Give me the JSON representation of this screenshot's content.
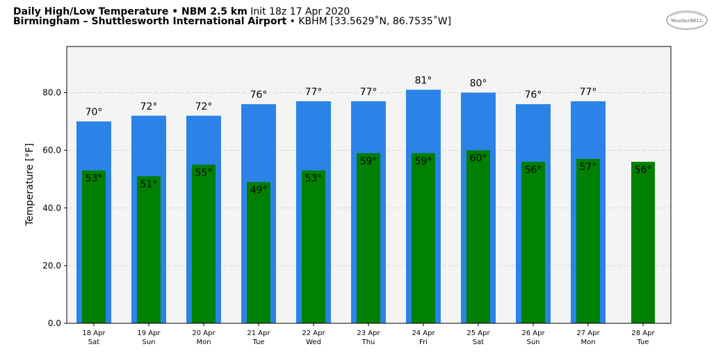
{
  "header": {
    "title_bold": "Daily High/Low Temperature • NBM 2.5 km",
    "title_rest": "Init 18z 17 Apr 2020",
    "location_bold": "Birmingham – Shuttlesworth International Airport",
    "location_rest": "• KBHM [33.5629˚N, 86.7535˚W]"
  },
  "logo": {
    "text": "WeatherBELL"
  },
  "chart_data": {
    "type": "bar",
    "title": "Daily High/Low Temperature • NBM 2.5 km",
    "xlabel": "",
    "ylabel": "Temperature [°F]",
    "ylim": [
      0,
      96
    ],
    "yticks": [
      0,
      20,
      40,
      60,
      80
    ],
    "ytick_labels": [
      "0.0",
      "20.0",
      "40.0",
      "60.0",
      "80.0"
    ],
    "grid": true,
    "categories": [
      {
        "date": "18 Apr",
        "day": "Sat"
      },
      {
        "date": "19 Apr",
        "day": "Sun"
      },
      {
        "date": "20 Apr",
        "day": "Mon"
      },
      {
        "date": "21 Apr",
        "day": "Tue"
      },
      {
        "date": "22 Apr",
        "day": "Wed"
      },
      {
        "date": "23 Apr",
        "day": "Thu"
      },
      {
        "date": "24 Apr",
        "day": "Fri"
      },
      {
        "date": "25 Apr",
        "day": "Sat"
      },
      {
        "date": "26 Apr",
        "day": "Sun"
      },
      {
        "date": "27 Apr",
        "day": "Mon"
      },
      {
        "date": "28 Apr",
        "day": "Tue"
      }
    ],
    "series": [
      {
        "values": [
          70,
          72,
          72,
          76,
          77,
          77,
          81,
          80,
          76,
          77,
          null
        ],
        "labels": [
          "70°",
          "72°",
          "72°",
          "76°",
          "77°",
          "77°",
          "81°",
          "80°",
          "76°",
          "77°",
          ""
        ],
        "color": "#2b83e8"
      },
      {
        "values": [
          53,
          51,
          55,
          49,
          53,
          59,
          59,
          60,
          56,
          57,
          56
        ],
        "labels": [
          "53°",
          "51°",
          "55°",
          "49°",
          "53°",
          "59°",
          "59°",
          "60°",
          "56°",
          "57°",
          "56°"
        ],
        "color": "#008000"
      }
    ],
    "plot_bg": "#f4f4f4"
  }
}
